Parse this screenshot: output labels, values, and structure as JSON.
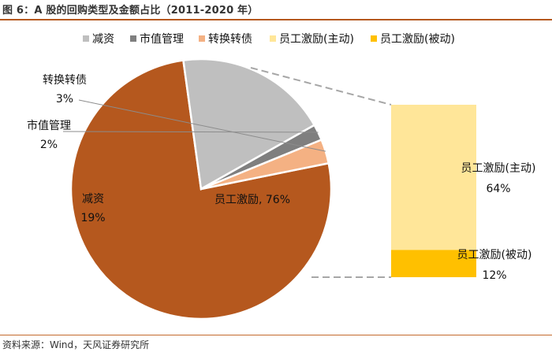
{
  "title": "图 6：A 股的回购类型及金额占比（2011-2020 年）",
  "source": "资料来源：Wind，天风证券研究所",
  "colors": {
    "accent_rule": "#b5581e",
    "减资": "#bfbfbf",
    "市值管理": "#7f7f7f",
    "转换转债": "#f4b183",
    "员工激励": "#b5581e",
    "员工激励(主动)": "#ffe699",
    "员工激励(被动)": "#ffc000"
  },
  "chart_data": [
    {
      "type": "pie",
      "title": "",
      "legend_position": "top",
      "legend": [
        "减资",
        "市值管理",
        "转换转债",
        "员工激励(主动)",
        "员工激励(被动)"
      ],
      "slices": [
        {
          "label": "员工激励",
          "value": 76,
          "data_label": "员工激励, 76%"
        },
        {
          "label": "减资",
          "value": 19,
          "data_label": "19%"
        },
        {
          "label": "市值管理",
          "value": 2,
          "data_label": "2%"
        },
        {
          "label": "转换转债",
          "value": 3,
          "data_label": "3%"
        }
      ]
    },
    {
      "type": "bar",
      "stacked": true,
      "title": "",
      "categories": [
        "员工激励"
      ],
      "series": [
        {
          "name": "员工激励(主动)",
          "values": [
            64
          ],
          "data_label": "64%"
        },
        {
          "name": "员工激励(被动)",
          "values": [
            12
          ],
          "data_label": "12%"
        }
      ]
    }
  ]
}
